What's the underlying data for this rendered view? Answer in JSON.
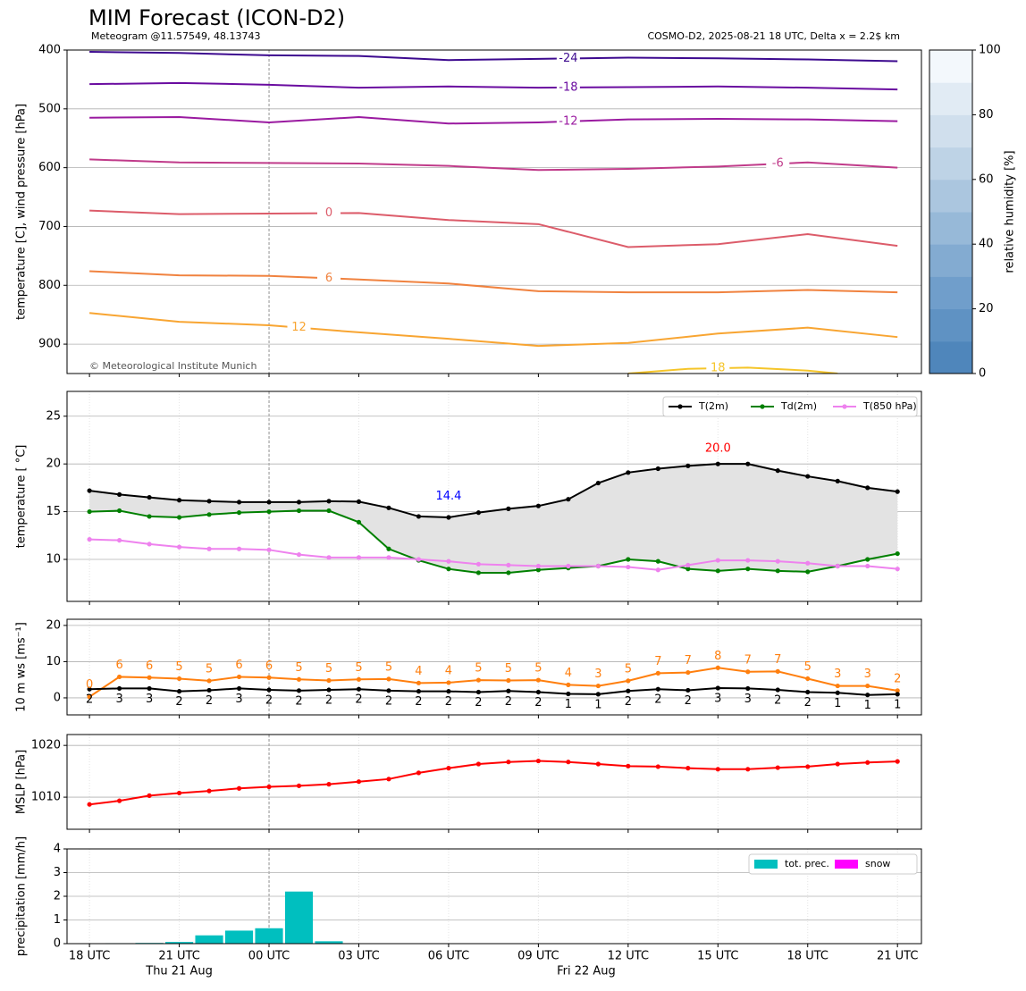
{
  "title": "MIM Forecast (ICON-D2)",
  "subtitle_left": "Meteogram @11.57549, 48.13743",
  "subtitle_right": "COSMO-D2, 2025-08-21 18 UTC, Delta x = 2.2$ km",
  "credit": "© Meteorological Institute Munich",
  "colorbar": {
    "label": "relative humidity [%]",
    "lim": [
      0,
      100
    ],
    "ticks": [
      0,
      20,
      40,
      60,
      80,
      100
    ],
    "colors": [
      "#4f86bb",
      "#5f92c3",
      "#709ecb",
      "#83abd1",
      "#97b9d8",
      "#abc6df",
      "#bed3e6",
      "#d0dfed",
      "#e1ebf4",
      "#f3f8fc"
    ]
  },
  "chart_data": [
    {
      "type": "contour",
      "y_label": "temperature [C], wind pressure [hPa]",
      "ylim": [
        950,
        400
      ],
      "yticks": [
        400,
        500,
        600,
        700,
        800,
        900
      ],
      "grid": true,
      "xlim": [
        -0.75,
        27.8
      ],
      "series": [
        {
          "name": "-24",
          "color": "#3d0a8f",
          "x": [
            0,
            3,
            6,
            9,
            12,
            15,
            18,
            21,
            24,
            27
          ],
          "values": [
            403,
            405,
            409,
            410,
            417,
            415,
            413,
            414,
            416,
            419
          ]
        },
        {
          "name": "-18",
          "color": "#6a0ca0",
          "x": [
            0,
            3,
            6,
            9,
            12,
            15,
            18,
            21,
            24,
            27
          ],
          "values": [
            458,
            456,
            459,
            464,
            462,
            464,
            463,
            462,
            464,
            467
          ]
        },
        {
          "name": "-12",
          "color": "#9a1aa0",
          "x": [
            0,
            3,
            6,
            9,
            12,
            15,
            18,
            21,
            24,
            27
          ],
          "values": [
            515,
            514,
            523,
            514,
            525,
            523,
            518,
            517,
            518,
            521
          ]
        },
        {
          "name": "-6",
          "color": "#c03b8a",
          "x": [
            0,
            3,
            6,
            9,
            12,
            15,
            18,
            21,
            24,
            27
          ],
          "values": [
            586,
            591,
            592,
            593,
            597,
            604,
            602,
            598,
            591,
            600
          ]
        },
        {
          "name": "0",
          "color": "#dc5c6a",
          "x": [
            0,
            3,
            6,
            9,
            12,
            15,
            18,
            21,
            24,
            27
          ],
          "values": [
            673,
            679,
            678,
            677,
            689,
            696,
            735,
            730,
            713,
            733
          ]
        },
        {
          "name": "6",
          "color": "#f0823f",
          "x": [
            0,
            3,
            6,
            9,
            12,
            15,
            18,
            21,
            24,
            27
          ],
          "values": [
            776,
            783,
            784,
            790,
            797,
            810,
            812,
            812,
            808,
            812
          ]
        },
        {
          "name": "12",
          "color": "#f8a532",
          "x": [
            0,
            3,
            6,
            9,
            12,
            15,
            18,
            21,
            24,
            27
          ],
          "values": [
            847,
            862,
            868,
            880,
            891,
            903,
            898,
            882,
            872,
            888
          ]
        },
        {
          "name": "18",
          "color": "#f5c52a",
          "x": [
            18,
            20,
            22,
            24,
            25
          ],
          "values": [
            950,
            942,
            940,
            945,
            950
          ]
        }
      ]
    },
    {
      "type": "line",
      "y_label": "temperature [ °C]",
      "ylim": [
        5.6,
        27.6
      ],
      "yticks": [
        10,
        15,
        20,
        25
      ],
      "grid": true,
      "xlim": [
        -0.75,
        27.8
      ],
      "fill_color": "#e3e3e3",
      "x": [
        0,
        1,
        2,
        3,
        4,
        5,
        6,
        7,
        8,
        9,
        10,
        11,
        12,
        13,
        14,
        15,
        16,
        17,
        18,
        19,
        20,
        21,
        22,
        23,
        24,
        25,
        26,
        27
      ],
      "series": [
        {
          "name": "T(2m)",
          "color": "#000000",
          "values": [
            17.2,
            16.8,
            16.5,
            16.2,
            16.1,
            16.0,
            16.0,
            16.0,
            16.1,
            16.05,
            15.4,
            14.5,
            14.4,
            14.9,
            15.3,
            15.6,
            16.3,
            18.0,
            19.1,
            19.5,
            19.8,
            20.0,
            20.0,
            19.3,
            18.7,
            18.2,
            17.5,
            17.1
          ]
        },
        {
          "name": "Td(2m)",
          "color": "#008000",
          "values": [
            15.0,
            15.1,
            14.5,
            14.4,
            14.7,
            14.9,
            15.0,
            15.1,
            15.1,
            13.9,
            11.1,
            9.9,
            9.0,
            8.6,
            8.6,
            8.9,
            9.1,
            9.3,
            10.0,
            9.8,
            9.0,
            8.8,
            9.0,
            8.8,
            8.7,
            9.3,
            10.0,
            10.6
          ]
        },
        {
          "name": "T(850 hPa)",
          "color": "#ee82ee",
          "values": [
            12.1,
            12.0,
            11.6,
            11.3,
            11.1,
            11.1,
            11.0,
            10.5,
            10.2,
            10.2,
            10.2,
            10.0,
            9.8,
            9.5,
            9.4,
            9.3,
            9.3,
            9.3,
            9.2,
            8.9,
            9.4,
            9.9,
            9.9,
            9.8,
            9.6,
            9.3,
            9.3,
            9.0
          ]
        }
      ],
      "annotations": [
        {
          "text": "14.4",
          "x": 12,
          "y": 16.6,
          "color": "#0000ff"
        },
        {
          "text": "20.0",
          "x": 21,
          "y": 21.6,
          "color": "#ff0000"
        }
      ],
      "legend": "upper right"
    },
    {
      "type": "line",
      "y_label": "10 m ws [ms⁻¹]",
      "ylim": [
        -4.7,
        21.7
      ],
      "yticks": [
        0,
        10,
        20
      ],
      "grid": true,
      "xlim": [
        -0.75,
        27.8
      ],
      "x": [
        0,
        1,
        2,
        3,
        4,
        5,
        6,
        7,
        8,
        9,
        10,
        11,
        12,
        13,
        14,
        15,
        16,
        17,
        18,
        19,
        20,
        21,
        22,
        23,
        24,
        25,
        26,
        27
      ],
      "series": [
        {
          "color": "#ff7f0e",
          "values": [
            0.3,
            5.8,
            5.6,
            5.3,
            4.7,
            5.8,
            5.6,
            5.1,
            4.8,
            5.1,
            5.2,
            4.1,
            4.2,
            4.9,
            4.8,
            4.9,
            3.6,
            3.3,
            4.7,
            6.8,
            7.0,
            8.3,
            7.2,
            7.3,
            5.3,
            3.3,
            3.3,
            2.0
          ],
          "value_labels": [
            "0",
            "6",
            "6",
            "5",
            "5",
            "6",
            "6",
            "5",
            "5",
            "5",
            "5",
            "4",
            "4",
            "5",
            "5",
            "5",
            "4",
            "3",
            "5",
            "7",
            "7",
            "8",
            "7",
            "7",
            "5",
            "3",
            "3",
            "2"
          ]
        },
        {
          "color": "#000000",
          "values": [
            2.4,
            2.6,
            2.6,
            1.8,
            2.1,
            2.6,
            2.2,
            2.0,
            2.2,
            2.4,
            2.0,
            1.8,
            1.8,
            1.6,
            1.9,
            1.6,
            1.1,
            1.0,
            1.9,
            2.4,
            2.1,
            2.7,
            2.6,
            2.2,
            1.6,
            1.4,
            0.8,
            1.0
          ],
          "value_labels": [
            "2",
            "3",
            "3",
            "2",
            "2",
            "3",
            "2",
            "2",
            "2",
            "2",
            "2",
            "2",
            "2",
            "2",
            "2",
            "2",
            "1",
            "1",
            "2",
            "2",
            "2",
            "3",
            "3",
            "2",
            "2",
            "1",
            "1",
            "1"
          ]
        }
      ]
    },
    {
      "type": "line",
      "y_label": "MSLP [hPa]",
      "ylim": [
        1003.8,
        1022.1
      ],
      "yticks": [
        1010,
        1020
      ],
      "grid": true,
      "xlim": [
        -0.75,
        27.8
      ],
      "x": [
        0,
        1,
        2,
        3,
        4,
        5,
        6,
        7,
        8,
        9,
        10,
        11,
        12,
        13,
        14,
        15,
        16,
        17,
        18,
        19,
        20,
        21,
        22,
        23,
        24,
        25,
        26,
        27
      ],
      "series": [
        {
          "color": "#ff0000",
          "values": [
            1008.6,
            1009.3,
            1010.3,
            1010.8,
            1011.2,
            1011.7,
            1012.0,
            1012.2,
            1012.5,
            1013.0,
            1013.5,
            1014.7,
            1015.6,
            1016.4,
            1016.8,
            1017.0,
            1016.8,
            1016.4,
            1016.0,
            1015.9,
            1015.6,
            1015.4,
            1015.4,
            1015.7,
            1015.9,
            1016.4,
            1016.7,
            1016.9
          ]
        }
      ]
    },
    {
      "type": "bar",
      "y_label": "precipitation [mm/h]",
      "ylim": [
        0,
        4
      ],
      "yticks": [
        0,
        1,
        2,
        3,
        4
      ],
      "grid": true,
      "xlim": [
        -0.75,
        27.8
      ],
      "x": [
        0,
        1,
        2,
        3,
        4,
        5,
        6,
        7,
        8,
        9,
        10,
        11,
        12,
        13,
        14,
        15,
        16,
        17,
        18,
        19,
        20,
        21,
        22,
        23,
        24,
        25,
        26,
        27
      ],
      "series": [
        {
          "name": "tot. prec.",
          "color": "#00bfbf",
          "values": [
            0,
            0.02,
            0.03,
            0.07,
            0.35,
            0.55,
            0.65,
            2.2,
            0.1,
            0,
            0,
            0,
            0,
            0,
            0,
            0,
            0,
            0,
            0,
            0,
            0,
            0,
            0,
            0,
            0,
            0,
            0,
            0
          ]
        },
        {
          "name": "snow",
          "color": "#ff00ff",
          "values": [
            0,
            0,
            0,
            0,
            0,
            0,
            0,
            0,
            0,
            0,
            0,
            0,
            0,
            0,
            0,
            0,
            0,
            0,
            0,
            0,
            0,
            0,
            0,
            0,
            0,
            0,
            0,
            0
          ]
        }
      ],
      "legend": "upper right",
      "xticks": [
        {
          "value": 0,
          "label": "18 UTC"
        },
        {
          "value": 3,
          "label": "21 UTC"
        },
        {
          "value": 6,
          "label": "00 UTC"
        },
        {
          "value": 9,
          "label": "03 UTC"
        },
        {
          "value": 12,
          "label": "06 UTC"
        },
        {
          "value": 15,
          "label": "09 UTC"
        },
        {
          "value": 18,
          "label": "12 UTC"
        },
        {
          "value": 21,
          "label": "15 UTC"
        },
        {
          "value": 24,
          "label": "18 UTC"
        },
        {
          "value": 27,
          "label": "21 UTC"
        }
      ],
      "date_labels": [
        {
          "value": 3,
          "label": "Thu 21 Aug"
        },
        {
          "value": 16.6,
          "label": "Fri 22 Aug"
        }
      ]
    }
  ]
}
